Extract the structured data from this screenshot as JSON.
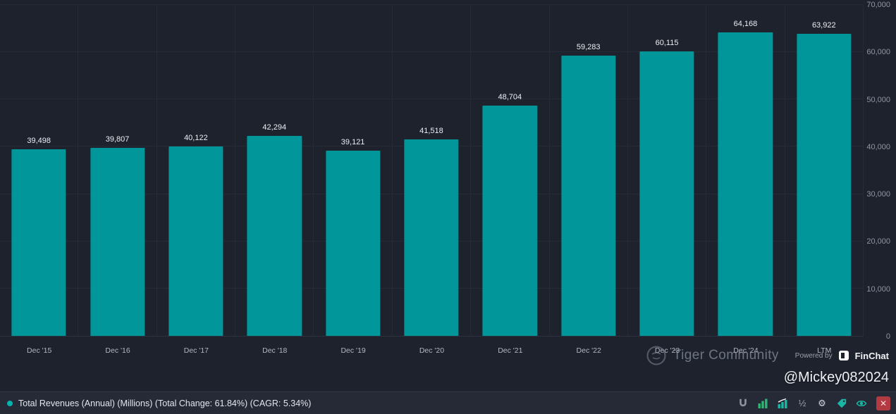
{
  "chart_data": {
    "type": "bar",
    "title": "Total Revenues (Annual) (Millions)",
    "categories": [
      "Dec '15",
      "Dec '16",
      "Dec '17",
      "Dec '18",
      "Dec '19",
      "Dec '20",
      "Dec '21",
      "Dec '22",
      "Dec '23",
      "Dec '24",
      "LTM"
    ],
    "values": [
      39498,
      39807,
      40122,
      42294,
      39121,
      41518,
      48704,
      59283,
      60115,
      64168,
      63922
    ],
    "value_labels": [
      "39,498",
      "39,807",
      "40,122",
      "42,294",
      "39,121",
      "41,518",
      "48,704",
      "59,283",
      "60,115",
      "64,168",
      "63,922"
    ],
    "xlabel": "",
    "ylabel": "",
    "ylim": [
      0,
      70000
    ],
    "yticks": [
      0,
      10000,
      20000,
      30000,
      40000,
      50000,
      60000,
      70000
    ],
    "ytick_labels": [
      "0",
      "10,000",
      "20,000",
      "30,000",
      "40,000",
      "50,000",
      "60,000",
      "70,000"
    ],
    "bar_color": "#00969a",
    "grid": true,
    "legend_position": "bottom-left"
  },
  "legend": {
    "label": "Total Revenues (Annual) (Millions) (Total Change: 61.84%) (CAGR: 5.34%)",
    "dot_color": "#00b3ad"
  },
  "watermark": {
    "community": "Tiger Community",
    "powered_by": "Powered by",
    "brand": "FinChat",
    "handle": "@Mickey082024"
  },
  "toolbar": {
    "icons": [
      {
        "name": "magnet-icon",
        "color": "#8d93a0"
      },
      {
        "name": "bar-chart-icon",
        "color": "#2bb673"
      },
      {
        "name": "combo-chart-icon",
        "color": "#19b8a6"
      },
      {
        "name": "fraction-icon",
        "color": "#9aa0ab",
        "glyph": "½"
      },
      {
        "name": "gear-icon",
        "color": "#d3d6dd",
        "glyph": "⚙"
      },
      {
        "name": "tag-icon",
        "color": "#19b8a6"
      },
      {
        "name": "eye-icon",
        "color": "#19b8a6"
      }
    ],
    "close_glyph": "✕"
  }
}
